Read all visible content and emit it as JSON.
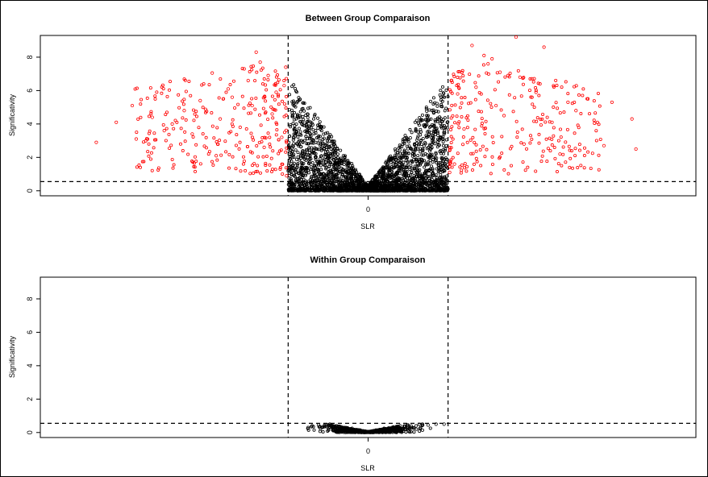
{
  "window": {
    "background": "#ffffff"
  },
  "chart_data": [
    {
      "type": "scatter",
      "title": "Between Group Comparaison",
      "xlabel": "SLR",
      "ylabel": "Significativity",
      "x_ticks": [
        0
      ],
      "y_ticks": [
        0,
        2,
        4,
        6,
        8
      ],
      "xlim": [
        -4.1,
        4.1
      ],
      "ylim": [
        -0.3,
        9.3
      ],
      "thresholds": {
        "slr": [
          -1,
          1
        ],
        "significance": 0.55
      },
      "colors": {
        "significant": "#ff0000",
        "nonsignificant": "#000000"
      },
      "series": [
        {
          "values": [
            [
              -3.4,
              2.9
            ],
            [
              -3.15,
              4.1
            ],
            [
              -2.95,
              5.1
            ],
            [
              -2.9,
              3.1
            ],
            [
              -2.7,
              4.4
            ],
            [
              -2.55,
              3.6
            ],
            [
              -2.45,
              4.0
            ],
            [
              -2.3,
              4.8
            ],
            [
              -2.2,
              3.4
            ],
            [
              -2.1,
              5.4
            ],
            [
              -1.95,
              7.05
            ],
            [
              -1.9,
              2.1
            ],
            [
              -1.85,
              4.3
            ],
            [
              -1.75,
              6.1
            ],
            [
              -1.7,
              5.6
            ],
            [
              -1.6,
              3.8
            ],
            [
              -1.55,
              7.3
            ],
            [
              -1.5,
              6.6
            ],
            [
              -1.45,
              5.1
            ],
            [
              -1.4,
              8.3
            ],
            [
              -1.35,
              7.7
            ],
            [
              -1.3,
              2.6
            ],
            [
              -1.25,
              6.9
            ],
            [
              -1.2,
              4.6
            ],
            [
              -1.15,
              5.9
            ],
            [
              -1.1,
              1.3
            ],
            [
              -1.08,
              3.2
            ],
            [
              -1.05,
              6.3
            ],
            [
              -1.03,
              7.4
            ],
            [
              -1.02,
              0.9
            ],
            [
              1.02,
              1.1
            ],
            [
              1.04,
              6.6
            ],
            [
              1.08,
              1.6
            ],
            [
              1.12,
              5.8
            ],
            [
              1.2,
              3.7
            ],
            [
              1.3,
              8.7
            ],
            [
              1.35,
              6.2
            ],
            [
              1.5,
              7.6
            ],
            [
              1.6,
              5.1
            ],
            [
              1.7,
              4.5
            ],
            [
              1.75,
              6.9
            ],
            [
              1.85,
              9.2
            ],
            [
              1.95,
              2.8
            ],
            [
              2.05,
              5.6
            ],
            [
              2.15,
              6.4
            ],
            [
              2.2,
              8.6
            ],
            [
              2.3,
              4.1
            ],
            [
              2.4,
              2.2
            ],
            [
              2.5,
              5.3
            ],
            [
              2.6,
              4.8
            ],
            [
              2.75,
              5.5
            ],
            [
              2.95,
              2.7
            ],
            [
              3.05,
              5.3
            ],
            [
              3.3,
              4.3
            ],
            [
              3.35,
              2.5
            ],
            [
              1.55,
              7.9
            ],
            [
              1.45,
              8.1
            ],
            [
              1.65,
              7.1
            ],
            [
              2.1,
              5.9
            ],
            [
              1.9,
              6.8
            ]
          ]
        }
      ]
    },
    {
      "type": "scatter",
      "title": "Within Group Comparaison",
      "xlabel": "SLR",
      "ylabel": "Significativity",
      "x_ticks": [
        0
      ],
      "y_ticks": [
        0,
        2,
        4,
        6,
        8
      ],
      "xlim": [
        -4.1,
        4.1
      ],
      "ylim": [
        -0.3,
        9.3
      ],
      "thresholds": {
        "slr": [
          -1,
          1
        ],
        "significance": 0.55
      },
      "colors": {
        "significant": "#ff0000",
        "nonsignificant": "#000000"
      },
      "series": [
        {
          "values": [
            [
              -0.75,
              0.3
            ],
            [
              -0.7,
              0.4
            ],
            [
              -0.62,
              0.45
            ],
            [
              -0.55,
              0.35
            ],
            [
              -0.48,
              0.5
            ],
            [
              -0.4,
              0.4
            ],
            [
              -0.3,
              0.3
            ],
            [
              -0.2,
              0.25
            ],
            [
              -0.1,
              0.15
            ],
            [
              0,
              0.05
            ],
            [
              0.1,
              0.15
            ],
            [
              0.2,
              0.25
            ],
            [
              0.3,
              0.3
            ],
            [
              0.4,
              0.4
            ],
            [
              0.5,
              0.45
            ],
            [
              0.6,
              0.4
            ],
            [
              0.68,
              0.5
            ],
            [
              0.75,
              0.45
            ],
            [
              0.85,
              0.5
            ],
            [
              0.95,
              0.5
            ]
          ]
        }
      ]
    }
  ]
}
